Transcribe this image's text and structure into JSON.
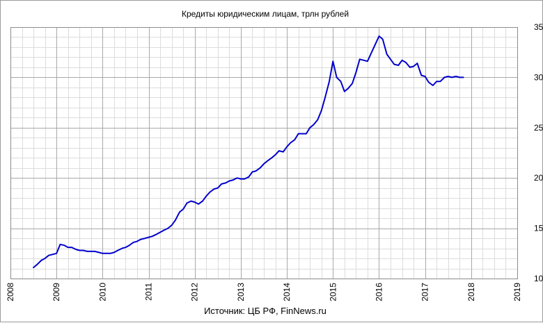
{
  "chart_data": {
    "type": "line",
    "title": "Кредиты юридическим лицам, трлн рублей",
    "source": "Источник: ЦБ РФ, FinNews.ru",
    "xlabel": "",
    "ylabel": "",
    "x_range": [
      2008,
      2019
    ],
    "ylim": [
      10,
      35
    ],
    "x_ticks": [
      "2008",
      "2009",
      "2010",
      "2011",
      "2012",
      "2013",
      "2014",
      "2015",
      "2016",
      "2017",
      "2018",
      "2019"
    ],
    "y_ticks": [
      "10",
      "15",
      "20",
      "25",
      "30",
      "35"
    ],
    "grid": true,
    "y_axis_side": "right",
    "line_color": "#0000cc",
    "series": [
      {
        "x": [
          2008.5,
          2008.58,
          2008.67,
          2008.75,
          2008.83,
          2008.92,
          2009.0,
          2009.08,
          2009.17,
          2009.25,
          2009.33,
          2009.42,
          2009.5,
          2009.58,
          2009.67,
          2009.75,
          2009.83,
          2009.92,
          2010.0,
          2010.08,
          2010.17,
          2010.25,
          2010.33,
          2010.42,
          2010.5,
          2010.58,
          2010.67,
          2010.75,
          2010.83,
          2010.92,
          2011.0,
          2011.08,
          2011.17,
          2011.25,
          2011.33,
          2011.42,
          2011.5,
          2011.58,
          2011.67,
          2011.75,
          2011.83,
          2011.92,
          2012.0,
          2012.08,
          2012.17,
          2012.25,
          2012.33,
          2012.42,
          2012.5,
          2012.58,
          2012.67,
          2012.75,
          2012.83,
          2012.92,
          2013.0,
          2013.08,
          2013.17,
          2013.25,
          2013.33,
          2013.42,
          2013.5,
          2013.58,
          2013.67,
          2013.75,
          2013.83,
          2013.92,
          2014.0,
          2014.08,
          2014.17,
          2014.25,
          2014.33,
          2014.42,
          2014.5,
          2014.58,
          2014.67,
          2014.75,
          2014.83,
          2014.92,
          2015.0,
          2015.08,
          2015.17,
          2015.25,
          2015.33,
          2015.42,
          2015.5,
          2015.58,
          2015.67,
          2015.75,
          2015.83,
          2015.92,
          2016.0,
          2016.08,
          2016.17,
          2016.25,
          2016.33,
          2016.42,
          2016.5,
          2016.58,
          2016.67,
          2016.75,
          2016.83,
          2016.92,
          2017.0,
          2017.08,
          2017.17,
          2017.25,
          2017.33,
          2017.42,
          2017.5,
          2017.58,
          2017.67,
          2017.75,
          2017.83
        ],
        "values": [
          11.1,
          11.4,
          11.8,
          12.0,
          12.3,
          12.4,
          12.5,
          13.4,
          13.3,
          13.1,
          13.1,
          12.9,
          12.8,
          12.8,
          12.7,
          12.7,
          12.7,
          12.6,
          12.5,
          12.5,
          12.5,
          12.6,
          12.8,
          13.0,
          13.1,
          13.3,
          13.6,
          13.7,
          13.9,
          14.0,
          14.1,
          14.2,
          14.4,
          14.6,
          14.8,
          15.0,
          15.3,
          15.8,
          16.6,
          16.9,
          17.5,
          17.7,
          17.6,
          17.4,
          17.7,
          18.2,
          18.6,
          18.9,
          19.0,
          19.4,
          19.5,
          19.7,
          19.8,
          20.0,
          19.9,
          19.9,
          20.1,
          20.6,
          20.7,
          21.0,
          21.4,
          21.7,
          22.0,
          22.3,
          22.7,
          22.6,
          23.1,
          23.5,
          23.8,
          24.4,
          24.4,
          24.4,
          25.0,
          25.3,
          25.8,
          26.7,
          28.0,
          29.6,
          31.6,
          30.0,
          29.6,
          28.6,
          28.9,
          29.4,
          30.5,
          31.8,
          31.7,
          31.6,
          32.4,
          33.3,
          34.1,
          33.8,
          32.3,
          31.8,
          31.3,
          31.2,
          31.7,
          31.5,
          31.0,
          31.1,
          31.4,
          30.2,
          30.1,
          29.5,
          29.2,
          29.6,
          29.6,
          30.0,
          30.1,
          30.0,
          30.1,
          30.0,
          30.0
        ]
      }
    ]
  }
}
